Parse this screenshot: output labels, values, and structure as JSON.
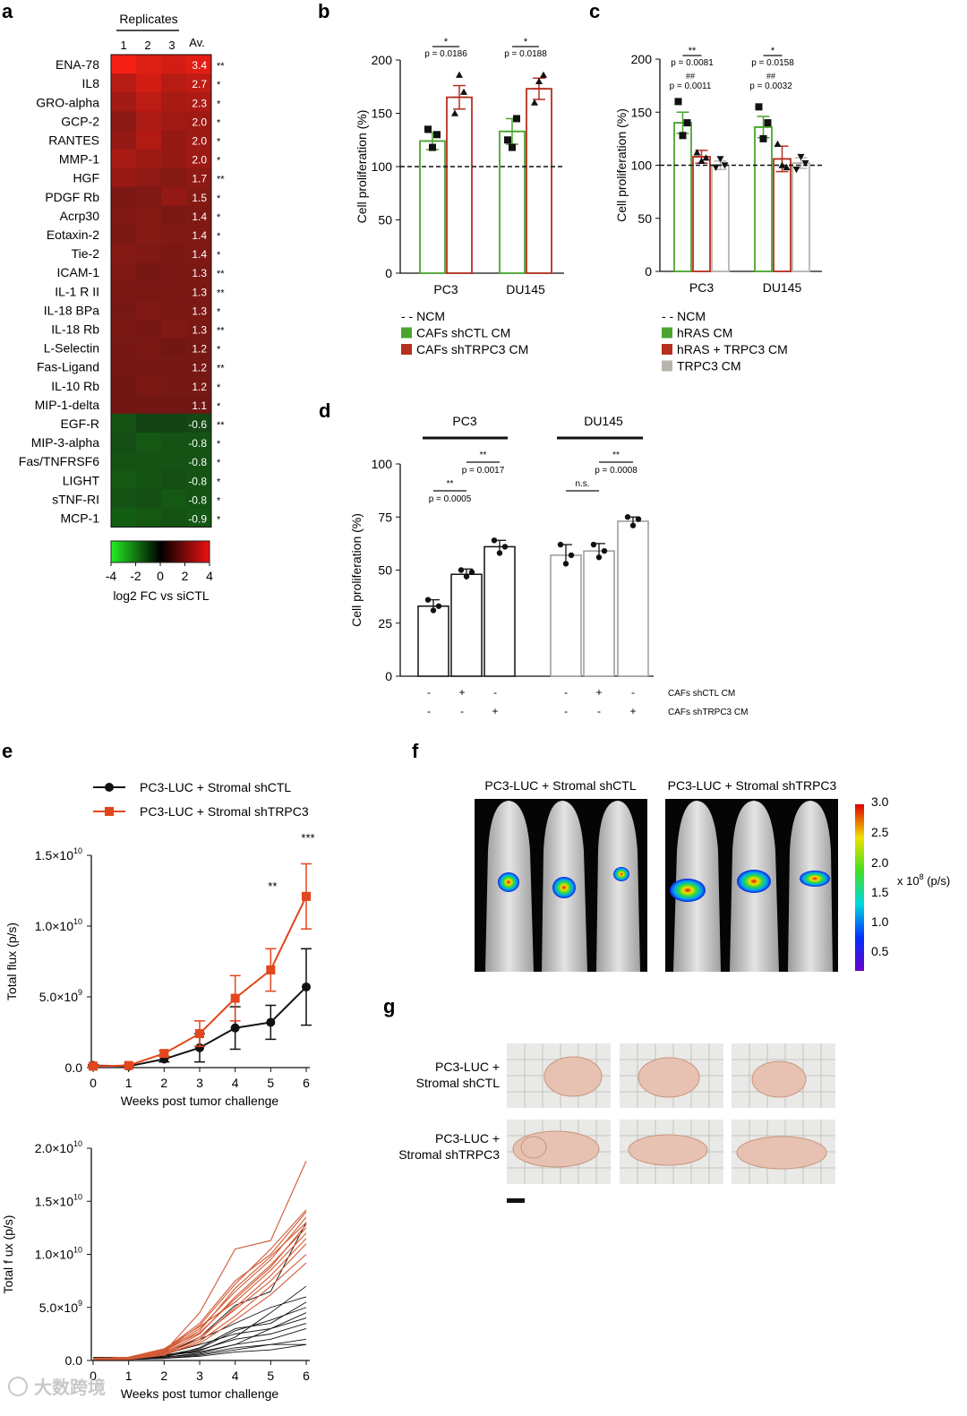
{
  "panel_labels": {
    "a": "a",
    "b": "b",
    "c": "c",
    "d": "d",
    "e": "e",
    "f": "f",
    "g": "g"
  },
  "colors": {
    "green": "#4aa52f",
    "red": "#b5301f",
    "grey": "#b8b5ae",
    "orange": "#e3461c",
    "black": "#111111"
  },
  "chart_data": [
    {
      "id": "a",
      "type": "heatmap",
      "title": "Replicates",
      "columns": [
        "1",
        "2",
        "3"
      ],
      "avg_header": "Av.",
      "rows": [
        {
          "label": "ENA-78",
          "avg": "3.4",
          "sig": "**",
          "reps": [
            3.8,
            3.3,
            3.1
          ]
        },
        {
          "label": "IL8",
          "avg": "2.7",
          "sig": "*",
          "reps": [
            2.5,
            3.1,
            2.5
          ]
        },
        {
          "label": "GRO-alpha",
          "avg": "2.3",
          "sig": "*",
          "reps": [
            2.1,
            2.6,
            2.2
          ]
        },
        {
          "label": "GCP-2",
          "avg": "2.0",
          "sig": "*",
          "reps": [
            1.6,
            2.3,
            2.1
          ]
        },
        {
          "label": "RANTES",
          "avg": "2.0",
          "sig": "*",
          "reps": [
            1.8,
            2.4,
            1.8
          ]
        },
        {
          "label": "MMP-1",
          "avg": "2.0",
          "sig": "*",
          "reps": [
            2.2,
            2.0,
            1.8
          ]
        },
        {
          "label": "HGF",
          "avg": "1.7",
          "sig": "**",
          "reps": [
            1.9,
            1.7,
            1.5
          ]
        },
        {
          "label": "PDGF Rb",
          "avg": "1.5",
          "sig": "*",
          "reps": [
            1.3,
            1.4,
            1.8
          ]
        },
        {
          "label": "Acrp30",
          "avg": "1.4",
          "sig": "*",
          "reps": [
            1.4,
            1.5,
            1.3
          ]
        },
        {
          "label": "Eotaxin-2",
          "avg": "1.4",
          "sig": "*",
          "reps": [
            1.3,
            1.5,
            1.4
          ]
        },
        {
          "label": "Tie-2",
          "avg": "1.4",
          "sig": "*",
          "reps": [
            1.5,
            1.4,
            1.3
          ]
        },
        {
          "label": "ICAM-1",
          "avg": "1.3",
          "sig": "**",
          "reps": [
            1.4,
            1.2,
            1.3
          ]
        },
        {
          "label": "IL-1 R II",
          "avg": "1.3",
          "sig": "**",
          "reps": [
            1.3,
            1.3,
            1.3
          ]
        },
        {
          "label": "IL-18 BPa",
          "avg": "1.3",
          "sig": "*",
          "reps": [
            1.2,
            1.4,
            1.3
          ]
        },
        {
          "label": "IL-18 Rb",
          "avg": "1.3",
          "sig": "**",
          "reps": [
            1.3,
            1.2,
            1.4
          ]
        },
        {
          "label": "L-Selectin",
          "avg": "1.2",
          "sig": "*",
          "reps": [
            1.2,
            1.3,
            1.1
          ]
        },
        {
          "label": "Fas-Ligand",
          "avg": "1.2",
          "sig": "**",
          "reps": [
            1.2,
            1.2,
            1.2
          ]
        },
        {
          "label": "IL-10 Rb",
          "avg": "1.2",
          "sig": "*",
          "reps": [
            1.1,
            1.3,
            1.2
          ]
        },
        {
          "label": "MIP-1-delta",
          "avg": "1.1",
          "sig": "*",
          "reps": [
            1.1,
            1.1,
            1.1
          ]
        },
        {
          "label": "EGF-R",
          "avg": "-0.6",
          "sig": "**",
          "reps": [
            -0.8,
            -0.5,
            -0.5
          ]
        },
        {
          "label": "MIP-3-alpha",
          "avg": "-0.8",
          "sig": "*",
          "reps": [
            -0.7,
            -0.9,
            -0.8
          ]
        },
        {
          "label": "Fas/TNFRSF6",
          "avg": "-0.8",
          "sig": "*",
          "reps": [
            -0.8,
            -0.8,
            -0.8
          ]
        },
        {
          "label": "LIGHT",
          "avg": "-0.8",
          "sig": "*",
          "reps": [
            -0.9,
            -0.8,
            -0.7
          ]
        },
        {
          "label": "sTNF-RI",
          "avg": "-0.8",
          "sig": "*",
          "reps": [
            -0.8,
            -0.7,
            -0.9
          ]
        },
        {
          "label": "MCP-1",
          "avg": "-0.9",
          "sig": "*",
          "reps": [
            -1.0,
            -0.9,
            -0.8
          ]
        }
      ],
      "colorbar": {
        "ticks": [
          "-4",
          "-2",
          "0",
          "2",
          "4"
        ],
        "range": [
          -4,
          4
        ],
        "label": "log2 FC vs siCTL"
      }
    },
    {
      "id": "b",
      "type": "bar",
      "ylabel": "Cell proliferation (%)",
      "ylim": [
        0,
        200
      ],
      "yticks": [
        "0",
        "50",
        "100",
        "150",
        "200"
      ],
      "baseline": 100,
      "categories": [
        "PC3",
        "DU145"
      ],
      "series": [
        {
          "name": "CAFs shCTL CM",
          "color": "green",
          "values": [
            124,
            133
          ],
          "err": [
            8,
            12
          ],
          "points": [
            [
              135,
              118,
              130
            ],
            [
              125,
              118,
              145
            ]
          ],
          "marker": "square"
        },
        {
          "name": "CAFs shTRPC3 CM",
          "color": "red",
          "values": [
            165,
            173
          ],
          "err": [
            11,
            10
          ],
          "points": [
            [
              150,
              186,
              170
            ],
            [
              160,
              180,
              186
            ]
          ],
          "marker": "triangle"
        }
      ],
      "comparisons": [
        {
          "cat": 0,
          "stars": "*",
          "p": "p = 0.0186"
        },
        {
          "cat": 1,
          "stars": "*",
          "p": "p = 0.0188"
        }
      ],
      "legend": [
        {
          "key": "- - NCM",
          "swatch": ""
        },
        {
          "key": "CAFs shCTL CM",
          "swatch": "green"
        },
        {
          "key": "CAFs shTRPC3 CM",
          "swatch": "red"
        }
      ]
    },
    {
      "id": "c",
      "type": "bar",
      "ylabel": "Cell proliferation (%)",
      "ylim": [
        0,
        200
      ],
      "yticks": [
        "0",
        "50",
        "100",
        "150",
        "200"
      ],
      "baseline": 100,
      "categories": [
        "PC3",
        "DU145"
      ],
      "series": [
        {
          "name": "hRAS CM",
          "color": "green",
          "values": [
            140,
            136
          ],
          "err": [
            10,
            10
          ],
          "points": [
            [
              160,
              128,
              140
            ],
            [
              155,
              125,
              140
            ]
          ],
          "marker": "square"
        },
        {
          "name": "hRAS + TRPC3 CM",
          "color": "red",
          "values": [
            108,
            106
          ],
          "err": [
            6,
            12
          ],
          "points": [
            [
              112,
              104,
              107
            ],
            [
              120,
              100,
              98
            ]
          ],
          "marker": "triangle"
        },
        {
          "name": "TRPC3 CM",
          "color": "grey",
          "values": [
            100,
            102
          ],
          "err": [
            4,
            5
          ],
          "points": [
            [
              98,
              106,
              100
            ],
            [
              96,
              108,
              102
            ]
          ],
          "marker": "triangle-down"
        }
      ],
      "comparisons": [
        {
          "cat": 0,
          "stars": "**",
          "p": "p = 0.0081",
          "hash": "##",
          "p2": "p = 0.0011"
        },
        {
          "cat": 1,
          "stars": "*",
          "p": "p = 0.0158",
          "hash": "##",
          "p2": "p = 0.0032"
        }
      ],
      "legend": [
        {
          "key": "- - NCM",
          "swatch": ""
        },
        {
          "key": "hRAS CM",
          "swatch": "green"
        },
        {
          "key": "hRAS + TRPC3 CM",
          "swatch": "red"
        },
        {
          "key": "TRPC3 CM",
          "swatch": "grey"
        }
      ]
    },
    {
      "id": "d",
      "type": "bar",
      "ylabel": "Cell proliferation (%)",
      "ylim": [
        0,
        100
      ],
      "yticks": [
        "0",
        "25",
        "50",
        "75",
        "100"
      ],
      "groups": [
        "PC3",
        "DU145"
      ],
      "bars": [
        {
          "group": 0,
          "value": 33,
          "err": 3,
          "points": [
            36,
            31,
            33
          ],
          "outline": "black"
        },
        {
          "group": 0,
          "value": 48,
          "err": 2.5,
          "points": [
            50,
            47,
            49
          ],
          "outline": "black"
        },
        {
          "group": 0,
          "value": 61,
          "err": 3,
          "points": [
            64,
            58,
            61
          ],
          "outline": "black"
        },
        {
          "group": 1,
          "value": 57,
          "err": 5,
          "points": [
            62,
            53,
            57
          ],
          "outline": "grey"
        },
        {
          "group": 1,
          "value": 59,
          "err": 3.5,
          "points": [
            62,
            56,
            59
          ],
          "outline": "grey"
        },
        {
          "group": 1,
          "value": 73,
          "err": 2,
          "points": [
            75,
            71,
            74
          ],
          "outline": "grey"
        }
      ],
      "comparisons": [
        {
          "from": 0,
          "to": 1,
          "stars": "**",
          "p": "p = 0.0005"
        },
        {
          "from": 1,
          "to": 2,
          "stars": "**",
          "p": "p = 0.0017"
        },
        {
          "from": 3,
          "to": 4,
          "stars": "n.s.",
          "p": ""
        },
        {
          "from": 4,
          "to": 5,
          "stars": "**",
          "p": "p = 0.0008"
        }
      ],
      "condition_rows": [
        {
          "label": "CAFs shCTL CM",
          "signs": [
            "-",
            "+",
            "-",
            "-",
            "+",
            "-"
          ]
        },
        {
          "label": "CAFs shTRPC3 CM",
          "signs": [
            "-",
            "-",
            "+",
            "-",
            "-",
            "+"
          ]
        }
      ]
    },
    {
      "id": "e_top",
      "type": "line",
      "xlabel": "Weeks post tumor challenge",
      "ylabel": "Total flux (p/s)",
      "x": [
        0,
        1,
        2,
        3,
        4,
        5,
        6
      ],
      "xlim": [
        0,
        6
      ],
      "ylim": [
        0,
        15000000000
      ],
      "yticks": [
        {
          "v": 0,
          "t": "0.0"
        },
        {
          "v": 5000000000,
          "t": "5.0×10",
          "e": "9"
        },
        {
          "v": 10000000000,
          "t": "1.0×10",
          "e": "10"
        },
        {
          "v": 15000000000,
          "t": "1.5×10",
          "e": "10"
        }
      ],
      "series": [
        {
          "name": "PC3-LUC + Stromal shCTL",
          "color": "black",
          "marker": "circle",
          "values": [
            150000000,
            100000000,
            600000000,
            1400000000,
            2800000000,
            3200000000,
            5700000000
          ],
          "err": [
            50000000,
            50000000,
            200000000,
            1000000000,
            1500000000,
            1200000000,
            2700000000
          ]
        },
        {
          "name": "PC3-LUC + Stromal shTRPC3",
          "color": "orange",
          "marker": "square",
          "values": [
            100000000,
            150000000,
            1000000000,
            2400000000,
            4900000000,
            6900000000,
            12100000000
          ],
          "err": [
            50000000,
            50000000,
            200000000,
            900000000,
            1600000000,
            1500000000,
            2300000000
          ]
        }
      ],
      "annotations": [
        {
          "x": 5,
          "text": "**"
        },
        {
          "x": 6,
          "text": "***"
        }
      ]
    },
    {
      "id": "e_bottom",
      "type": "line",
      "xlabel": "Weeks post tumor challenge",
      "ylabel": "Total f ux (p/s)",
      "x": [
        0,
        1,
        2,
        3,
        4,
        5,
        6
      ],
      "xlim": [
        0,
        6
      ],
      "ylim": [
        0,
        20000000000
      ],
      "yticks": [
        {
          "v": 0,
          "t": "0.0"
        },
        {
          "v": 5000000000,
          "t": "5.0×10",
          "e": "9"
        },
        {
          "v": 10000000000,
          "t": "1.0×10",
          "e": "10"
        },
        {
          "v": 15000000000,
          "t": "1.5×10",
          "e": "10"
        },
        {
          "v": 20000000000,
          "t": "2.0×10",
          "e": "10"
        }
      ],
      "black_lines": [
        [
          0.1,
          0.2,
          0.5,
          2.2,
          5.2,
          6.5,
          13.0
        ],
        [
          0.2,
          0.3,
          0.8,
          2.0,
          3.5,
          5.0,
          6.0
        ],
        [
          0.1,
          0.1,
          0.3,
          1.2,
          3.0,
          3.5,
          5.5
        ],
        [
          0.2,
          0.2,
          0.6,
          1.5,
          2.5,
          3.0,
          4.5
        ],
        [
          0.1,
          0.1,
          0.4,
          1.0,
          2.0,
          2.5,
          3.5
        ],
        [
          0.2,
          0.3,
          0.5,
          0.8,
          1.5,
          2.0,
          3.0
        ],
        [
          0.1,
          0.2,
          0.3,
          0.6,
          1.2,
          1.5,
          2.0
        ],
        [
          0.1,
          0.1,
          0.2,
          0.5,
          1.0,
          1.5,
          1.5
        ],
        [
          0.2,
          0.2,
          0.4,
          0.9,
          2.2,
          4.5,
          7.0
        ],
        [
          0.1,
          0.1,
          0.3,
          0.7,
          1.5,
          3.0,
          4.0
        ],
        [
          0.1,
          0.1,
          0.2,
          0.4,
          0.8,
          1.0,
          1.5
        ],
        [
          0.3,
          0.3,
          0.5,
          1.1,
          2.8,
          3.8,
          5.0
        ]
      ],
      "orange_lines": [
        [
          0.1,
          0.2,
          0.8,
          4.5,
          10.5,
          11.3,
          18.8
        ],
        [
          0.2,
          0.3,
          1.0,
          3.5,
          7.5,
          10.0,
          14.0
        ],
        [
          0.1,
          0.2,
          0.9,
          3.0,
          6.5,
          9.5,
          13.5
        ],
        [
          0.1,
          0.2,
          0.7,
          2.5,
          6.0,
          9.0,
          12.5
        ],
        [
          0.2,
          0.3,
          1.1,
          3.2,
          5.5,
          8.5,
          12.0
        ],
        [
          0.1,
          0.1,
          0.6,
          2.0,
          5.0,
          8.0,
          11.5
        ],
        [
          0.1,
          0.2,
          0.8,
          2.8,
          6.8,
          9.8,
          13.0
        ],
        [
          0.2,
          0.2,
          0.7,
          2.2,
          4.8,
          7.5,
          11.0
        ],
        [
          0.1,
          0.2,
          0.9,
          3.3,
          7.2,
          10.5,
          14.2
        ],
        [
          0.1,
          0.1,
          0.5,
          1.8,
          4.2,
          7.0,
          10.0
        ],
        [
          0.2,
          0.3,
          1.0,
          2.6,
          5.8,
          8.8,
          12.8
        ],
        [
          0.1,
          0.2,
          0.6,
          1.6,
          3.8,
          6.2,
          9.2
        ]
      ],
      "unit_scale": 1000000000
    }
  ],
  "panel_f": {
    "group1": "PC3-LUC + Stromal shCTL",
    "group2": "PC3-LUC + Stromal shTRPC3",
    "colorbar_ticks": [
      "3.0",
      "2.5",
      "2.0",
      "1.5",
      "1.0",
      "0.5"
    ],
    "unit": "x 10",
    "unit_exp": "8",
    "unit_tail": " (p/s)"
  },
  "panel_g": {
    "row1_line1": "PC3-LUC +",
    "row1_line2": "Stromal shCTL",
    "row2_line1": "PC3-LUC +",
    "row2_line2": "Stromal shTRPC3"
  },
  "watermark": "大数跨境"
}
